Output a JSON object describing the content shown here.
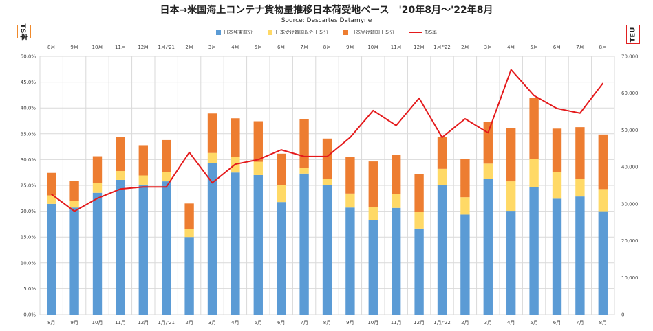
{
  "chart_data": {
    "type": "bar",
    "title": "日本→米国海上コンテナ貨物量推移日本荷受地ベース　'20年8月～'22年8月",
    "subtitle": "Source: Descartes Datamyne",
    "ylabel_left": "TS率",
    "ylabel_right": "TEU",
    "categories": [
      "8月",
      "9月",
      "10月",
      "11月",
      "12月",
      "1月/'21",
      "2月",
      "3月",
      "4月",
      "5月",
      "6月",
      "7月",
      "8月",
      "9月",
      "10月",
      "11月",
      "12月",
      "1月/'22",
      "2月",
      "3月",
      "4月",
      "5月",
      "6月",
      "7月",
      "8月"
    ],
    "series": [
      {
        "name": "日本発東航分",
        "color": "#5b9bd5",
        "axis": "right",
        "values": [
          30000,
          29000,
          33000,
          36500,
          35200,
          36100,
          21000,
          41000,
          38500,
          37800,
          30500,
          38200,
          35100,
          29000,
          25600,
          28900,
          23300,
          35000,
          27100,
          36800,
          28100,
          34500,
          31400,
          32000,
          28000
        ]
      },
      {
        "name": "日本受け韓国以外ＴＳ分",
        "color": "#ffd966",
        "axis": "right",
        "values": [
          2300,
          1800,
          2600,
          2400,
          2500,
          2500,
          2200,
          2800,
          4200,
          3600,
          4500,
          1500,
          1600,
          3800,
          3500,
          3800,
          4500,
          4500,
          4700,
          4100,
          8000,
          7700,
          7300,
          4800,
          6000
        ]
      },
      {
        "name": "日本受け韓国ＴＳ分",
        "color": "#ed7d31",
        "axis": "right",
        "values": [
          6100,
          5400,
          7300,
          9300,
          8200,
          8700,
          6900,
          10700,
          10500,
          11000,
          8600,
          13200,
          11000,
          10000,
          12400,
          10500,
          10200,
          8700,
          10400,
          11300,
          14500,
          16600,
          11700,
          14000,
          14800
        ]
      },
      {
        "name": "T/S率",
        "color": "#e41a1c",
        "axis": "left",
        "type": "line",
        "values": [
          23.3,
          20.0,
          22.5,
          24.3,
          24.7,
          24.7,
          31.4,
          25.5,
          29.1,
          30.0,
          31.9,
          30.6,
          30.6,
          34.3,
          39.5,
          36.6,
          41.9,
          34.3,
          37.9,
          35.2,
          47.4,
          42.4,
          39.9,
          39.0,
          44.8
        ]
      }
    ],
    "ylim_left": [
      0,
      50
    ],
    "yticks_left": [
      "0.0%",
      "5.0%",
      "10.0%",
      "15.0%",
      "20.0%",
      "25.0%",
      "30.0%",
      "35.0%",
      "40.0%",
      "45.0%",
      "50.0%"
    ],
    "ylim_right": [
      0,
      70000
    ],
    "yticks_right": [
      "0",
      "10,000",
      "20,000",
      "30,000",
      "40,000",
      "50,000",
      "60,000",
      "70,000"
    ],
    "grid": true,
    "legend_position": "top"
  }
}
